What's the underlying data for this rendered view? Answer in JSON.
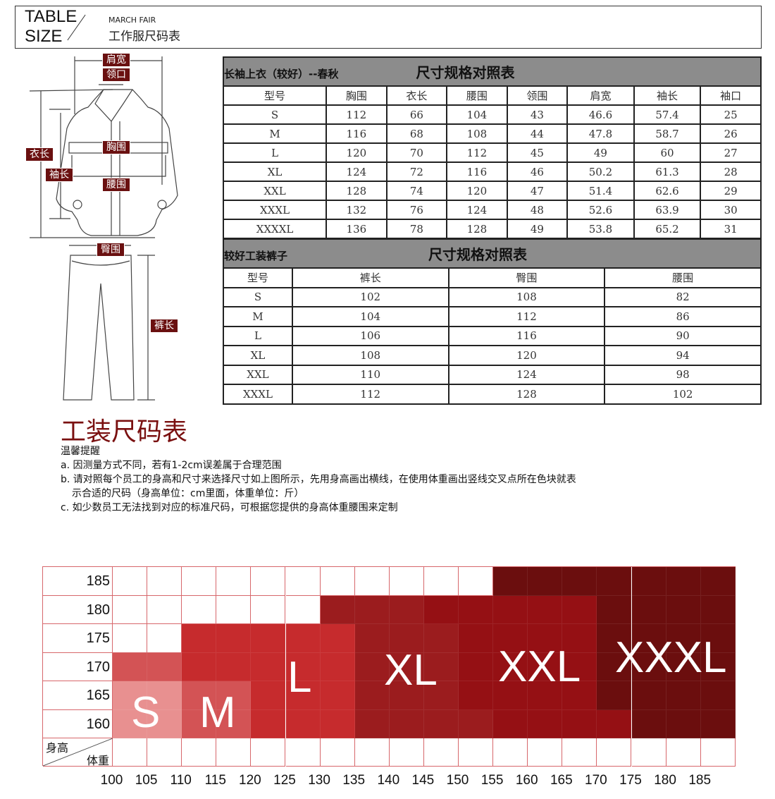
{
  "header": {
    "title_line1": "TABLE",
    "title_line2": "SIZE",
    "subtitle_en": "MARCH FAIR",
    "subtitle_cn": "工作服尺码表"
  },
  "diagram_labels": {
    "shoulder": "肩宽",
    "collar": "领口",
    "length": "衣长",
    "chest": "胸围",
    "sleeve": "袖长",
    "waist": "腰围",
    "hip": "臀围",
    "pants_length": "裤长"
  },
  "jacket_table": {
    "subtitle": "长袖上衣（较好）--春秋",
    "title": "尺寸规格对照表",
    "columns": [
      "型号",
      "胸围",
      "衣长",
      "腰围",
      "领围",
      "肩宽",
      "袖长",
      "袖口"
    ],
    "rows": [
      [
        "S",
        "112",
        "66",
        "104",
        "43",
        "46.6",
        "57.4",
        "25"
      ],
      [
        "M",
        "116",
        "68",
        "108",
        "44",
        "47.8",
        "58.7",
        "26"
      ],
      [
        "L",
        "120",
        "70",
        "112",
        "45",
        "49",
        "60",
        "27"
      ],
      [
        "XL",
        "124",
        "72",
        "116",
        "46",
        "50.2",
        "61.3",
        "28"
      ],
      [
        "XXL",
        "128",
        "74",
        "120",
        "47",
        "51.4",
        "62.6",
        "29"
      ],
      [
        "XXXL",
        "132",
        "76",
        "124",
        "48",
        "52.6",
        "63.9",
        "30"
      ],
      [
        "XXXXL",
        "136",
        "78",
        "128",
        "49",
        "53.8",
        "65.2",
        "31"
      ]
    ]
  },
  "pants_table": {
    "subtitle": "较好工装裤子",
    "title": "尺寸规格对照表",
    "columns": [
      "型号",
      "裤长",
      "臀围",
      "腰围"
    ],
    "rows": [
      [
        "S",
        "102",
        "108",
        "82"
      ],
      [
        "M",
        "104",
        "112",
        "86"
      ],
      [
        "L",
        "106",
        "116",
        "90"
      ],
      [
        "XL",
        "108",
        "120",
        "94"
      ],
      [
        "XXL",
        "110",
        "124",
        "98"
      ],
      [
        "XXXL",
        "112",
        "128",
        "102"
      ]
    ]
  },
  "section_title": "工装尺码表",
  "notes": {
    "heading": "温馨提醒",
    "a": "a. 因测量方式不同，若有1-2cm误差属于合理范围",
    "b1": "b. 请对照每个员工的身高和尺寸来选择尺寸如上图所示，先用身高画出横线，在使用体重画出竖线交叉点所在色块就表",
    "b2": "示合适的尺码（身高单位：cm里面，体重单位：斤）",
    "c": "c. 如少数员工无法找到对应的标准尺码，可根据您提供的身高体重腰围来定制"
  },
  "size_grid": {
    "corner_height": "身高",
    "corner_weight": "体重",
    "heights": [
      "185",
      "180",
      "175",
      "170",
      "165",
      "160"
    ],
    "weights": [
      "100",
      "105",
      "110",
      "115",
      "120",
      "125",
      "130",
      "135",
      "140",
      "145",
      "150",
      "155",
      "160",
      "165",
      "170",
      "175",
      "180",
      "185"
    ],
    "colors": {
      "S": "#e89090",
      "M": "#d35355",
      "L": "#c62b2d",
      "XL": "#9b1c1e",
      "XXL": "#951014",
      "XXXL": "#6b0e0e"
    },
    "size_labels": [
      "S",
      "M",
      "L",
      "XL",
      "XXL",
      "XXXL"
    ],
    "cells": [
      [
        "",
        "",
        "",
        "",
        "",
        "",
        "",
        "",
        "",
        "",
        "",
        "XXXL",
        "XXXL",
        "XXXL",
        "XXXL",
        "XXXL",
        "XXXL",
        "XXXL"
      ],
      [
        "",
        "",
        "",
        "",
        "",
        "",
        "XL",
        "XL",
        "XL",
        "XXL",
        "XXL",
        "XXL",
        "XXL",
        "XXL",
        "XXXL",
        "XXXL",
        "XXXL",
        "XXXL"
      ],
      [
        "",
        "",
        "L",
        "L",
        "L",
        "L",
        "L",
        "XL",
        "XL",
        "XL",
        "XXL",
        "XXL",
        "XXL",
        "XXL",
        "XXXL",
        "XXXL",
        "XXXL",
        "XXXL"
      ],
      [
        "M",
        "M",
        "L",
        "L",
        "L",
        "L",
        "L",
        "XL",
        "XL",
        "XL",
        "XXL",
        "XXL",
        "XXL",
        "XXL",
        "XXXL",
        "XXXL",
        "XXXL",
        "XXXL"
      ],
      [
        "S",
        "S",
        "M",
        "M",
        "L",
        "L",
        "L",
        "XL",
        "XL",
        "XL",
        "XXL",
        "XXL",
        "XXL",
        "XXL",
        "XXXL",
        "XXXL",
        "XXXL",
        "XXXL"
      ],
      [
        "S",
        "S",
        "M",
        "M",
        "L",
        "L",
        "L",
        "XL",
        "XL",
        "XL",
        "XL",
        "XXL",
        "XXL",
        "XXL",
        "XXL",
        "XXXL",
        "XXXL",
        "XXXL"
      ]
    ]
  }
}
